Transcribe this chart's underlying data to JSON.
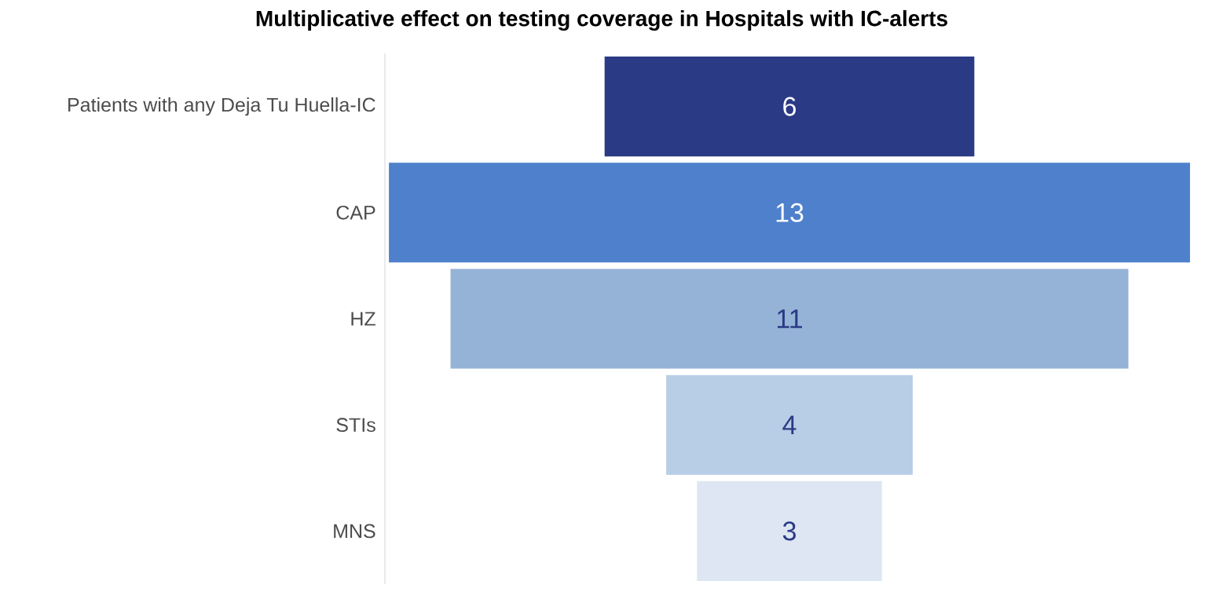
{
  "chart_data": {
    "type": "other",
    "title": "Multiplicative effect on testing coverage in Hospitals with IC-alerts",
    "categories": [
      "Patients with any Deja Tu Huella-IC",
      "CAP",
      "HZ",
      "STIs",
      "MNS"
    ],
    "values": [
      6,
      13,
      11,
      4,
      3
    ],
    "colors": [
      "#2a3a85",
      "#4f80cc",
      "#95b3d7",
      "#b8cde6",
      "#dde6f2"
    ],
    "data_labels": true
  }
}
